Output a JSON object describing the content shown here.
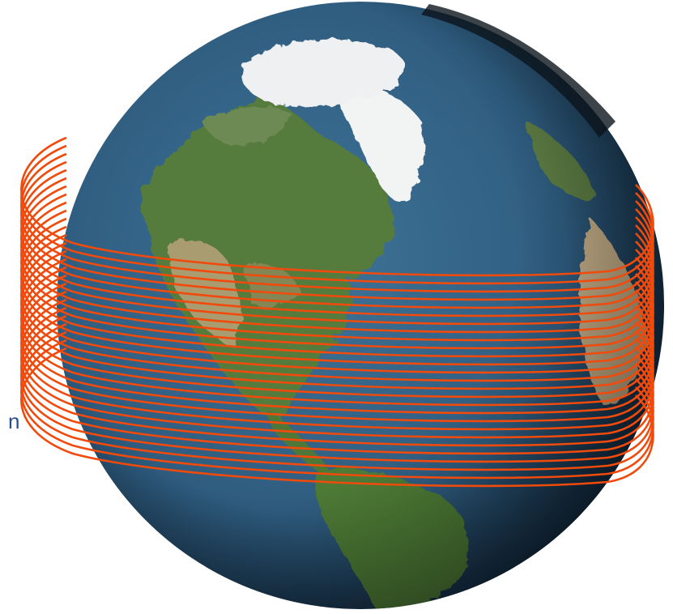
{
  "label_fragment": "n",
  "colors": {
    "orbit_stroke": "#f04a0c",
    "ocean": "#2f5d80",
    "ocean_dark": "#10263a",
    "land_green": "#567c3c",
    "land_tan": "#c7b089",
    "ice": "#f2f3f3",
    "background": "#ffffff"
  },
  "scene": {
    "subject": "globe",
    "orbit_ring_count": 27
  }
}
